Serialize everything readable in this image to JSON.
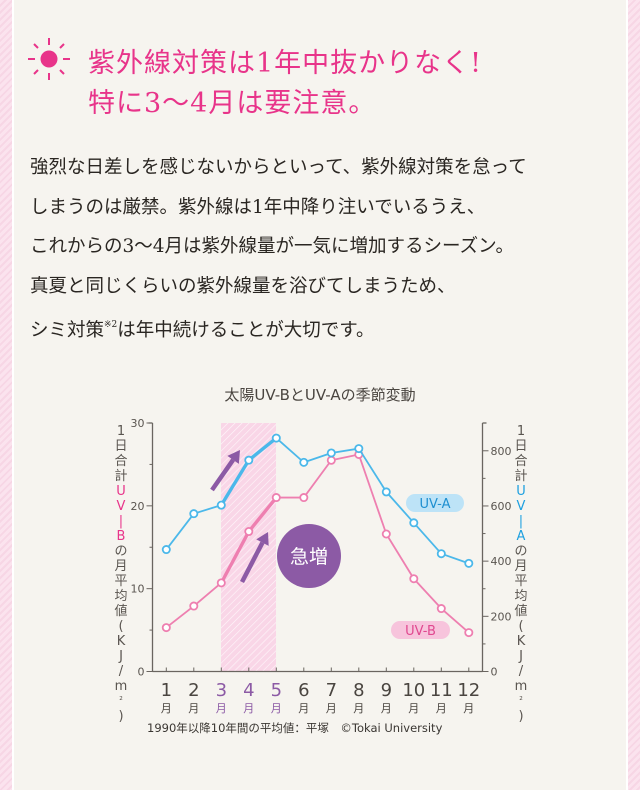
{
  "headline": {
    "icon": "sun-icon",
    "line1": "紫外線対策は1年中抜かりなく!",
    "line2": "特に3〜4月は要注意。"
  },
  "body": {
    "lines": [
      "強烈な日差しを感じないからといって、紫外線対策を怠って",
      "しまうのは厳禁。紫外線は1年中降り注いでいるうえ、",
      "これからの3〜4月は紫外線量が一気に増加するシーズン。",
      "真夏と同じくらいの紫外線量を浴びてしまうため、"
    ],
    "last_line_pre": "シミ対策",
    "last_line_note": "※2",
    "last_line_post": "は年中続けることが大切です。"
  },
  "chart": {
    "title": "太陽UV-BとUV-Aの季節変動",
    "left_axis_label": [
      "1",
      "日",
      "合",
      "計",
      "U",
      "V",
      "|",
      "B",
      "の",
      "月",
      "平",
      "均",
      "値",
      "(",
      "K",
      "J",
      "/",
      "m",
      "²",
      ")"
    ],
    "right_axis_label": [
      "1",
      "日",
      "合",
      "計",
      "U",
      "V",
      "|",
      "A",
      "の",
      "月",
      "平",
      "均",
      "値",
      "(",
      "K",
      "J",
      "/",
      "m",
      "²",
      ")"
    ],
    "badge": "急増",
    "legend_uva": "UV-A",
    "legend_uvb": "UV-B",
    "source": "1990年以降10年間の平均値：平塚　©Tokai University"
  },
  "colors": {
    "accent_pink": "#e8348a",
    "uva_blue": "#4bb8ea",
    "uvb_pink": "#ee7fb0",
    "badge_purple": "#8c5aa5",
    "highlight_band": "#f9d6e7"
  },
  "chart_data": {
    "type": "line",
    "title": "太陽UV-BとUV-Aの季節変動",
    "categories": [
      "1月",
      "2月",
      "3月",
      "4月",
      "5月",
      "6月",
      "7月",
      "8月",
      "9月",
      "10月",
      "11月",
      "12月"
    ],
    "x_tick_numbers": [
      "1",
      "2",
      "3",
      "4",
      "5",
      "6",
      "7",
      "8",
      "9",
      "10",
      "11",
      "12"
    ],
    "x_tick_unit": "月",
    "highlighted_categories": [
      "3月",
      "4月",
      "5月"
    ],
    "series": [
      {
        "name": "UV-B",
        "axis": "left",
        "color": "#ee7fb0",
        "values": [
          5.3,
          7.9,
          10.7,
          16.9,
          21.0,
          21.0,
          25.5,
          26.2,
          16.6,
          11.2,
          7.6,
          4.7
        ]
      },
      {
        "name": "UV-A",
        "axis": "right",
        "color": "#4bb8ea",
        "values": [
          442,
          572,
          603,
          766,
          846,
          758,
          792,
          808,
          651,
          539,
          427,
          392
        ]
      }
    ],
    "left_axis": {
      "label": "1日合計UV-Bの月平均値(KJ/m²)",
      "ylim": [
        0,
        30
      ],
      "ticks": [
        0,
        10,
        20,
        30
      ]
    },
    "right_axis": {
      "label": "1日合計UV-Aの月平均値(KJ/m²)",
      "ylim": [
        0,
        870
      ],
      "ticks": [
        0,
        200,
        400,
        600,
        800
      ]
    },
    "annotations": [
      "急増"
    ],
    "grid": false,
    "legend_position": "inline-right",
    "note": "1990年以降10年間の平均値：平塚　©Tokai University"
  }
}
